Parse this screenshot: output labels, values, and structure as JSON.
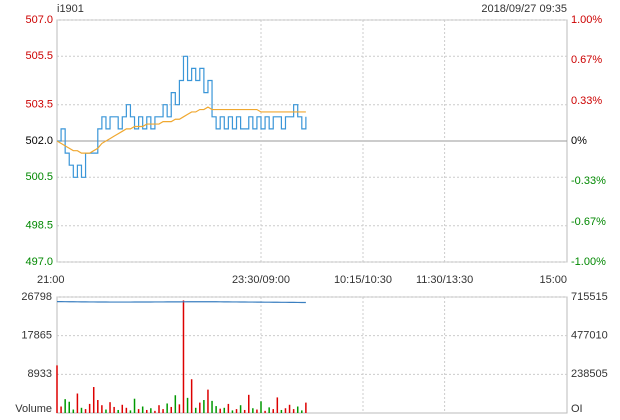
{
  "chart_data": [
    {
      "type": "line",
      "title": "i1901",
      "subtitle": "2018/09/27 09:35",
      "x": [
        0,
        3,
        6,
        9,
        12,
        15,
        18,
        21,
        24,
        27,
        30,
        33,
        36,
        39,
        42,
        45,
        48,
        51,
        54,
        57,
        60,
        63,
        66,
        69,
        72,
        75,
        78,
        81,
        84,
        87,
        90,
        93,
        96,
        99,
        102,
        105,
        108,
        111,
        114,
        117,
        120,
        123,
        126,
        129,
        132,
        135,
        138,
        141,
        144,
        147,
        150,
        153,
        156,
        159,
        162,
        165,
        168,
        171,
        174,
        177,
        180,
        183
      ],
      "xlim": [
        0,
        375
      ],
      "xticks": [
        {
          "value": 0,
          "label": "21:00"
        },
        {
          "value": 150,
          "label": "23:30/09:00"
        },
        {
          "value": 225,
          "label": "10:15/10:30"
        },
        {
          "value": 285,
          "label": "11:30/13:30"
        },
        {
          "value": 375,
          "label": "15:00"
        }
      ],
      "ylim": [
        497,
        507
      ],
      "yticks": [
        {
          "value": 497,
          "label": "497.0"
        },
        {
          "value": 498.5,
          "label": "498.5"
        },
        {
          "value": 500.5,
          "label": "500.5"
        },
        {
          "value": 502,
          "label": "502.0"
        },
        {
          "value": 503.5,
          "label": "503.5"
        },
        {
          "value": 505.5,
          "label": "505.5"
        },
        {
          "value": 507,
          "label": "507.0"
        }
      ],
      "y2lim": [
        -1,
        1
      ],
      "y2ticks": [
        {
          "value": -1,
          "label": "-1.00%"
        },
        {
          "value": -0.67,
          "label": "-0.67%"
        },
        {
          "value": -0.33,
          "label": "-0.33%"
        },
        {
          "value": 0,
          "label": "0%"
        },
        {
          "value": 0.33,
          "label": "0.33%"
        },
        {
          "value": 0.67,
          "label": "0.67%"
        },
        {
          "value": 1,
          "label": "1.00%"
        }
      ],
      "grid": true,
      "series": [
        {
          "color": "#3a96d8",
          "values": [
            502,
            502.5,
            501.5,
            501,
            500.5,
            501,
            500.5,
            501.5,
            501.5,
            501.5,
            502.5,
            503,
            502.5,
            503,
            503,
            502.5,
            503,
            503.5,
            503,
            502.5,
            503,
            502.5,
            503,
            502.5,
            503,
            503,
            503.5,
            503,
            504,
            503.5,
            504.5,
            505.5,
            504.5,
            505,
            504.5,
            505,
            504,
            504.5,
            503,
            502.5,
            503,
            502.5,
            503,
            502.5,
            503,
            502.5,
            502.5,
            503,
            502.5,
            503,
            502.5,
            503,
            502.5,
            503,
            503,
            502.5,
            503,
            503,
            503.5,
            503,
            502.5,
            503
          ]
        },
        {
          "color": "#f0a830",
          "values": [
            502,
            501.9,
            501.8,
            501.7,
            501.6,
            501.6,
            501.5,
            501.5,
            501.5,
            501.6,
            501.7,
            501.9,
            502,
            502.1,
            502.2,
            502.3,
            502.4,
            502.5,
            502.5,
            502.6,
            502.6,
            502.6,
            502.7,
            502.7,
            502.7,
            502.7,
            502.8,
            502.8,
            502.8,
            502.9,
            502.9,
            503,
            503.1,
            503.2,
            503.2,
            503.3,
            503.3,
            503.4,
            503.3,
            503.3,
            503.3,
            503.3,
            503.3,
            503.3,
            503.3,
            503.3,
            503.3,
            503.3,
            503.3,
            503.3,
            503.2,
            503.2,
            503.2,
            503.2,
            503.2,
            503.2,
            503.2,
            503.2,
            503.2,
            503.2,
            503.2,
            503.2
          ]
        }
      ]
    },
    {
      "type": "bar",
      "ylabel": "Volume",
      "y2label": "OI",
      "x": [
        0,
        3,
        6,
        9,
        12,
        15,
        18,
        21,
        24,
        27,
        30,
        33,
        36,
        39,
        42,
        45,
        48,
        51,
        54,
        57,
        60,
        63,
        66,
        69,
        72,
        75,
        78,
        81,
        84,
        87,
        90,
        93,
        96,
        99,
        102,
        105,
        108,
        111,
        114,
        117,
        120,
        123,
        126,
        129,
        132,
        135,
        138,
        141,
        144,
        147,
        150,
        153,
        156,
        159,
        162,
        165,
        168,
        171,
        174,
        177,
        180,
        183
      ],
      "xlim": [
        0,
        375
      ],
      "ylim": [
        0,
        26798
      ],
      "yticks": [
        8933,
        17865,
        26798
      ],
      "y2lim": [
        0,
        715515
      ],
      "y2ticks": [
        238505,
        477010,
        715515
      ],
      "up_color": "#dd0000",
      "down_color": "#009900",
      "values": [
        11000,
        1500,
        3200,
        2600,
        800,
        4500,
        1200,
        900,
        2100,
        6000,
        3000,
        1800,
        800,
        2500,
        1400,
        700,
        1900,
        1200,
        600,
        3300,
        900,
        1500,
        700,
        1100,
        500,
        1800,
        900,
        2200,
        1400,
        4100,
        2000,
        26000,
        3500,
        7800,
        1200,
        2400,
        3000,
        5400,
        2800,
        1600,
        1000,
        1200,
        2100,
        600,
        900,
        1800,
        700,
        4200,
        1100,
        800,
        2700,
        500,
        1300,
        900,
        3600,
        700,
        1100,
        1900,
        900,
        1500,
        600,
        2400
      ],
      "series": [
        {
          "axis": "y2",
          "color": "#3a7fc0",
          "values": [
            687000,
            686800,
            686500,
            686200,
            686000,
            685800,
            685600,
            685400,
            685200,
            685000,
            684800,
            684600,
            684500,
            684400,
            684300,
            684200,
            684200,
            684300,
            684400,
            684500,
            684600,
            684700,
            684800,
            684900,
            685000,
            685100,
            685200,
            685300,
            685400,
            685500,
            685600,
            685800,
            686000,
            686200,
            686300,
            686400,
            686400,
            686300,
            686200,
            686000,
            685800,
            685600,
            685400,
            685200,
            685000,
            684800,
            684600,
            684400,
            684200,
            684000,
            683800,
            683600,
            683400,
            683200,
            683000,
            682800,
            682600,
            682400,
            682200,
            682000,
            681800,
            681600
          ]
        }
      ]
    }
  ]
}
